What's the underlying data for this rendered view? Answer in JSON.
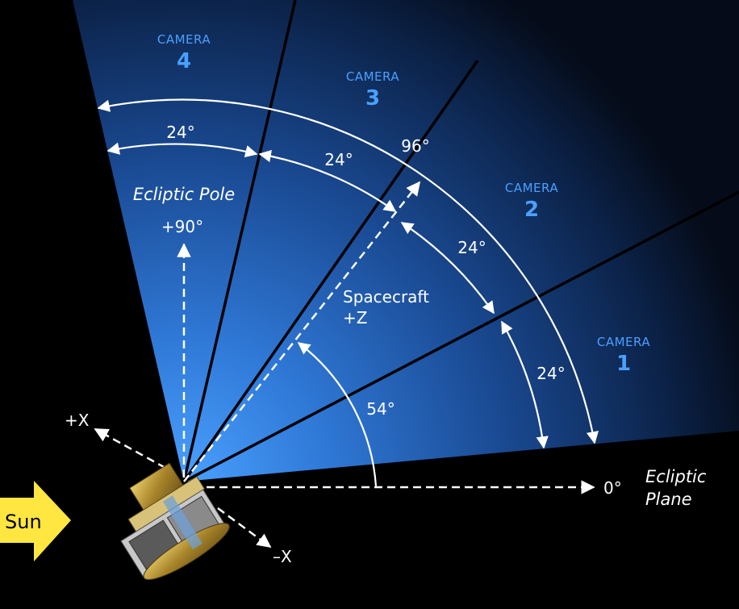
{
  "cameras": [
    {
      "title": "CAMERA",
      "number": "4"
    },
    {
      "title": "CAMERA",
      "number": "3"
    },
    {
      "title": "CAMERA",
      "number": "2"
    },
    {
      "title": "CAMERA",
      "number": "1"
    }
  ],
  "angles": {
    "cam4_width": "24°",
    "cam3_width": "24°",
    "total_fov": "96°",
    "cam2_width": "24°",
    "cam1_width": "24°",
    "boresight_elevation": "54°",
    "pole": "+90°",
    "plane": "0°"
  },
  "labels": {
    "ecliptic_pole": "Ecliptic Pole",
    "spacecraft_line1": "Spacecraft",
    "spacecraft_line2": "+Z",
    "ecliptic_plane_line1": "Ecliptic",
    "ecliptic_plane_line2": "Plane",
    "plus_x": "+X",
    "minus_x": "–X",
    "sun": "Sun"
  },
  "colors": {
    "camera_text": "#4aa0ff",
    "fov_glow": "#3d8ef0",
    "sun_arrow": "#ffe640",
    "spacecraft_gold": "#c9a83a"
  }
}
